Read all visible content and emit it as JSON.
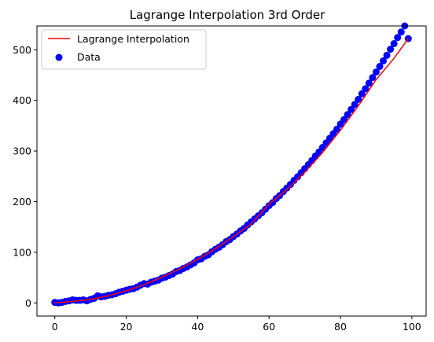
{
  "chart_data": {
    "type": "scatter",
    "title": "Lagrange Interpolation 3rd Order",
    "xlabel": "",
    "ylabel": "",
    "xlim": [
      -5,
      104
    ],
    "ylim": [
      -26,
      547
    ],
    "x_ticks": [
      0,
      20,
      40,
      60,
      80,
      100
    ],
    "y_ticks": [
      0,
      100,
      200,
      300,
      400,
      500
    ],
    "grid": false,
    "legend_position": "top-left",
    "colors": {
      "line": "#ff0000",
      "points": "#0000ff"
    },
    "series": [
      {
        "name": "Data",
        "kind": "points",
        "x": [
          0,
          1,
          2,
          3,
          4,
          5,
          6,
          7,
          8,
          9,
          10,
          11,
          12,
          13,
          14,
          15,
          16,
          17,
          18,
          19,
          20,
          21,
          22,
          23,
          24,
          25,
          26,
          27,
          28,
          29,
          30,
          31,
          32,
          33,
          34,
          35,
          36,
          37,
          38,
          39,
          40,
          41,
          42,
          43,
          44,
          45,
          46,
          47,
          48,
          49,
          50,
          51,
          52,
          53,
          54,
          55,
          56,
          57,
          58,
          59,
          60,
          61,
          62,
          63,
          64,
          65,
          66,
          67,
          68,
          69,
          70,
          71,
          72,
          73,
          74,
          75,
          76,
          77,
          78,
          79,
          80,
          81,
          82,
          83,
          84,
          85,
          86,
          87,
          88,
          89,
          90,
          91,
          92,
          93,
          94,
          95,
          96,
          97,
          98,
          99
        ],
        "y": [
          1,
          0,
          1,
          3,
          4,
          6,
          5,
          5,
          6,
          4,
          7,
          9,
          14,
          12,
          13,
          15,
          16,
          18,
          21,
          23,
          25,
          27,
          28,
          31,
          35,
          38,
          37,
          41,
          43,
          45,
          49,
          51,
          54,
          57,
          62,
          64,
          68,
          71,
          75,
          79,
          85,
          87,
          92,
          95,
          101,
          106,
          110,
          115,
          121,
          125,
          131,
          136,
          142,
          147,
          154,
          160,
          166,
          172,
          178,
          185,
          192,
          198,
          206,
          212,
          220,
          227,
          234,
          242,
          249,
          257,
          265,
          273,
          281,
          290,
          298,
          307,
          316,
          325,
          334,
          343,
          353,
          362,
          372,
          382,
          392,
          402,
          413,
          423,
          434,
          445,
          456,
          467,
          478,
          489,
          501,
          512,
          524,
          535,
          547,
          522
        ]
      },
      {
        "name": "Lagrange Interpolation",
        "kind": "line",
        "x": [
          0,
          5,
          10,
          15,
          20,
          25,
          30,
          35,
          40,
          45,
          50,
          55,
          60,
          65,
          70,
          75,
          80,
          85,
          90,
          95,
          99
        ],
        "y": [
          0,
          3,
          7,
          14,
          24,
          36,
          51,
          67,
          86,
          107,
          131,
          156,
          195,
          224,
          258,
          297,
          341,
          389,
          441,
          483,
          522
        ]
      }
    ]
  }
}
